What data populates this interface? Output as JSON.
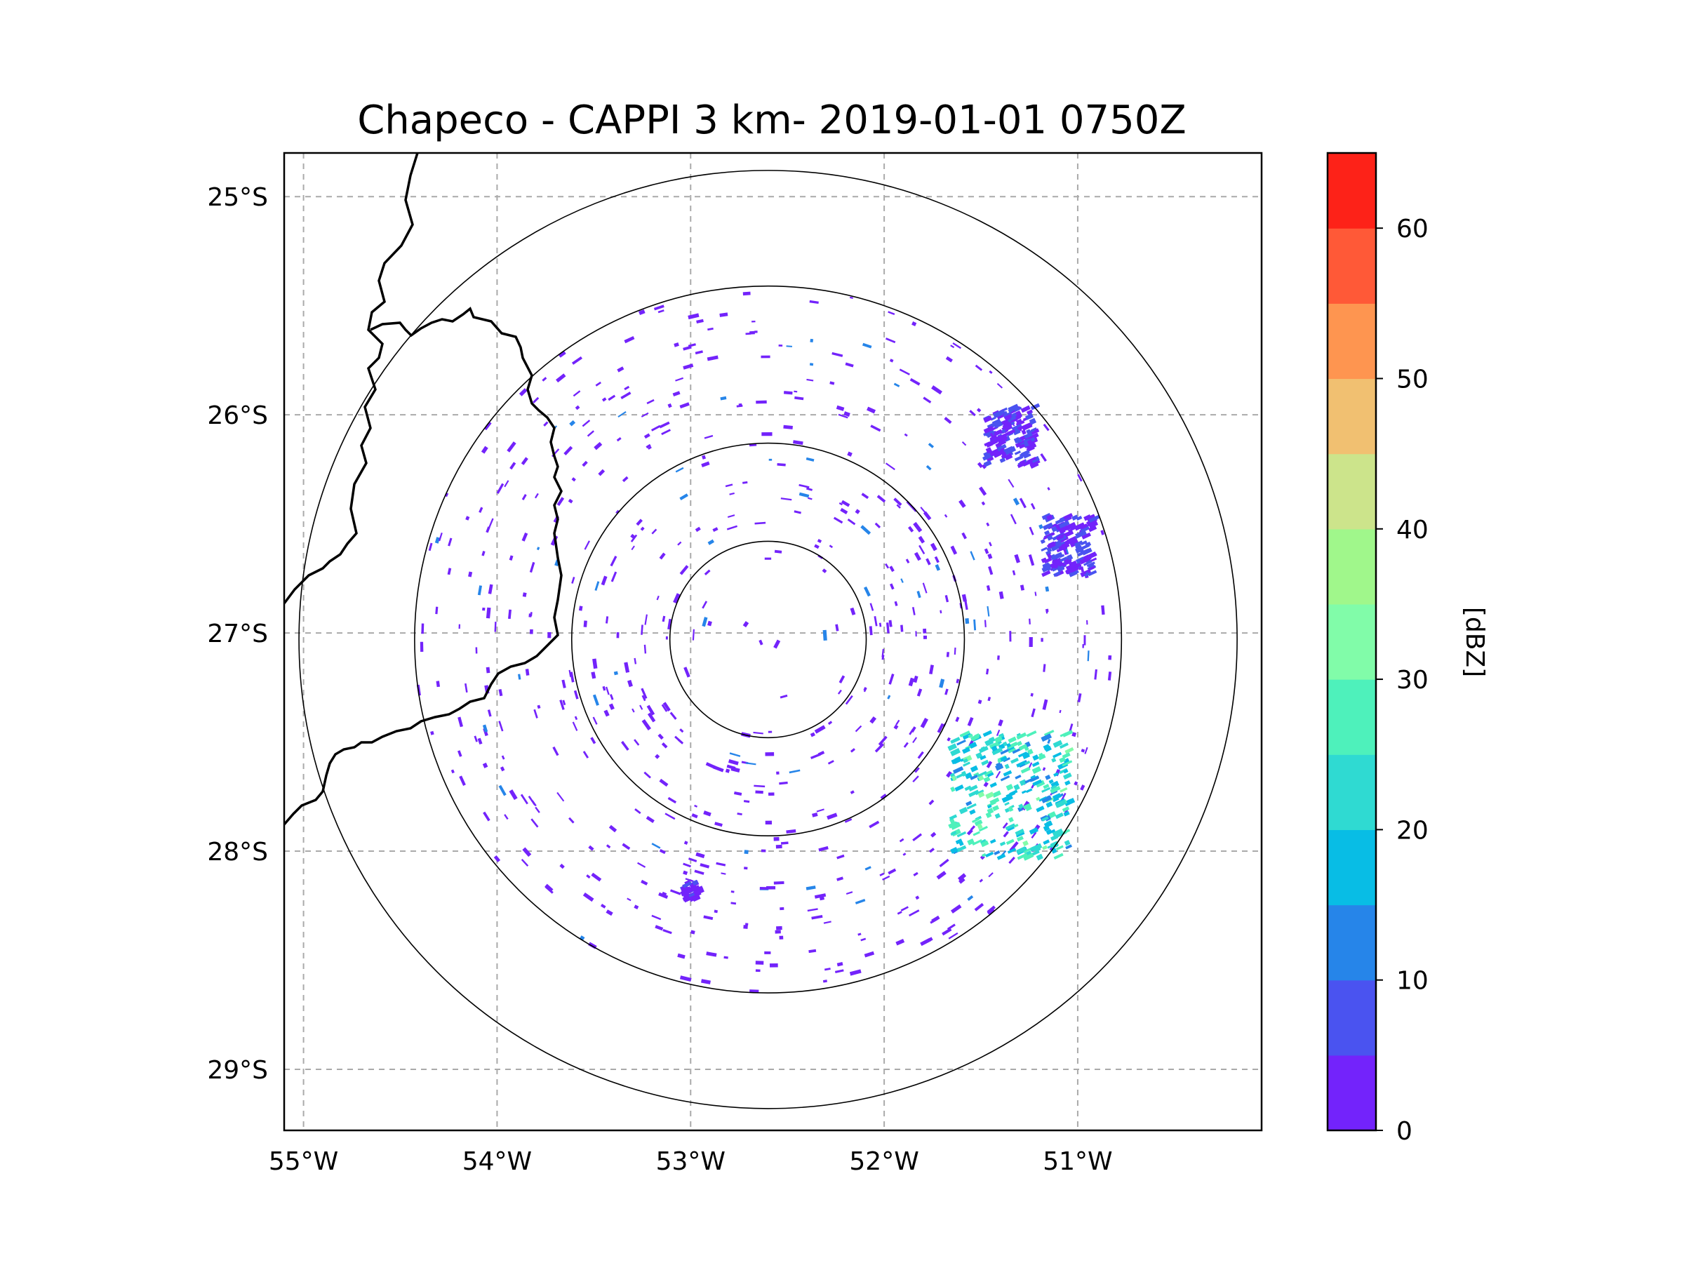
{
  "chart_data": {
    "type": "heatmap",
    "title": "Chapeco - CAPPI 3 km- 2019-01-01 0750Z",
    "projection": "lat-lon map centred on radar site",
    "radar_center": {
      "lon": -52.6,
      "lat": -27.03
    },
    "extent": {
      "lon": [
        -55.1,
        -50.05
      ],
      "lat": [
        -29.28,
        -24.8
      ]
    },
    "x_ticks": [
      {
        "lon": -55,
        "label": "55°W"
      },
      {
        "lon": -54,
        "label": "54°W"
      },
      {
        "lon": -53,
        "label": "53°W"
      },
      {
        "lon": -52,
        "label": "52°W"
      },
      {
        "lon": -51,
        "label": "51°W"
      }
    ],
    "y_ticks": [
      {
        "lat": -25,
        "label": "25°S"
      },
      {
        "lat": -26,
        "label": "26°S"
      },
      {
        "lat": -27,
        "label": "27°S"
      },
      {
        "lat": -28,
        "label": "28°S"
      },
      {
        "lat": -29,
        "label": "29°S"
      }
    ],
    "range_rings_deg_lat": [
      0.45,
      0.9,
      1.62,
      2.15
    ],
    "gridlines": "dashed",
    "colorbar": {
      "label": "[dBZ]",
      "min": 0,
      "max": 65,
      "ticks": [
        0,
        10,
        20,
        30,
        40,
        50,
        60
      ],
      "colors": [
        "#7323fb",
        "#4a53f0",
        "#2685e9",
        "#08bde5",
        "#2fdad2",
        "#4ef1bb",
        "#81fca9",
        "#a0f78b",
        "#cce48b",
        "#f1c071",
        "#fe9550",
        "#ff5937",
        "#fd2218"
      ]
    },
    "echo_clusters": [
      {
        "region": "northeast",
        "lon": -51.35,
        "lat": -26.1,
        "dbz": 5
      },
      {
        "region": "east",
        "lon": -51.05,
        "lat": -26.6,
        "dbz": 5
      },
      {
        "region": "southeast",
        "lon": -51.35,
        "lat": -27.75,
        "dbz": 22
      },
      {
        "region": "south-southwest",
        "lon": -53.0,
        "lat": -28.18,
        "dbz": 3
      }
    ]
  }
}
